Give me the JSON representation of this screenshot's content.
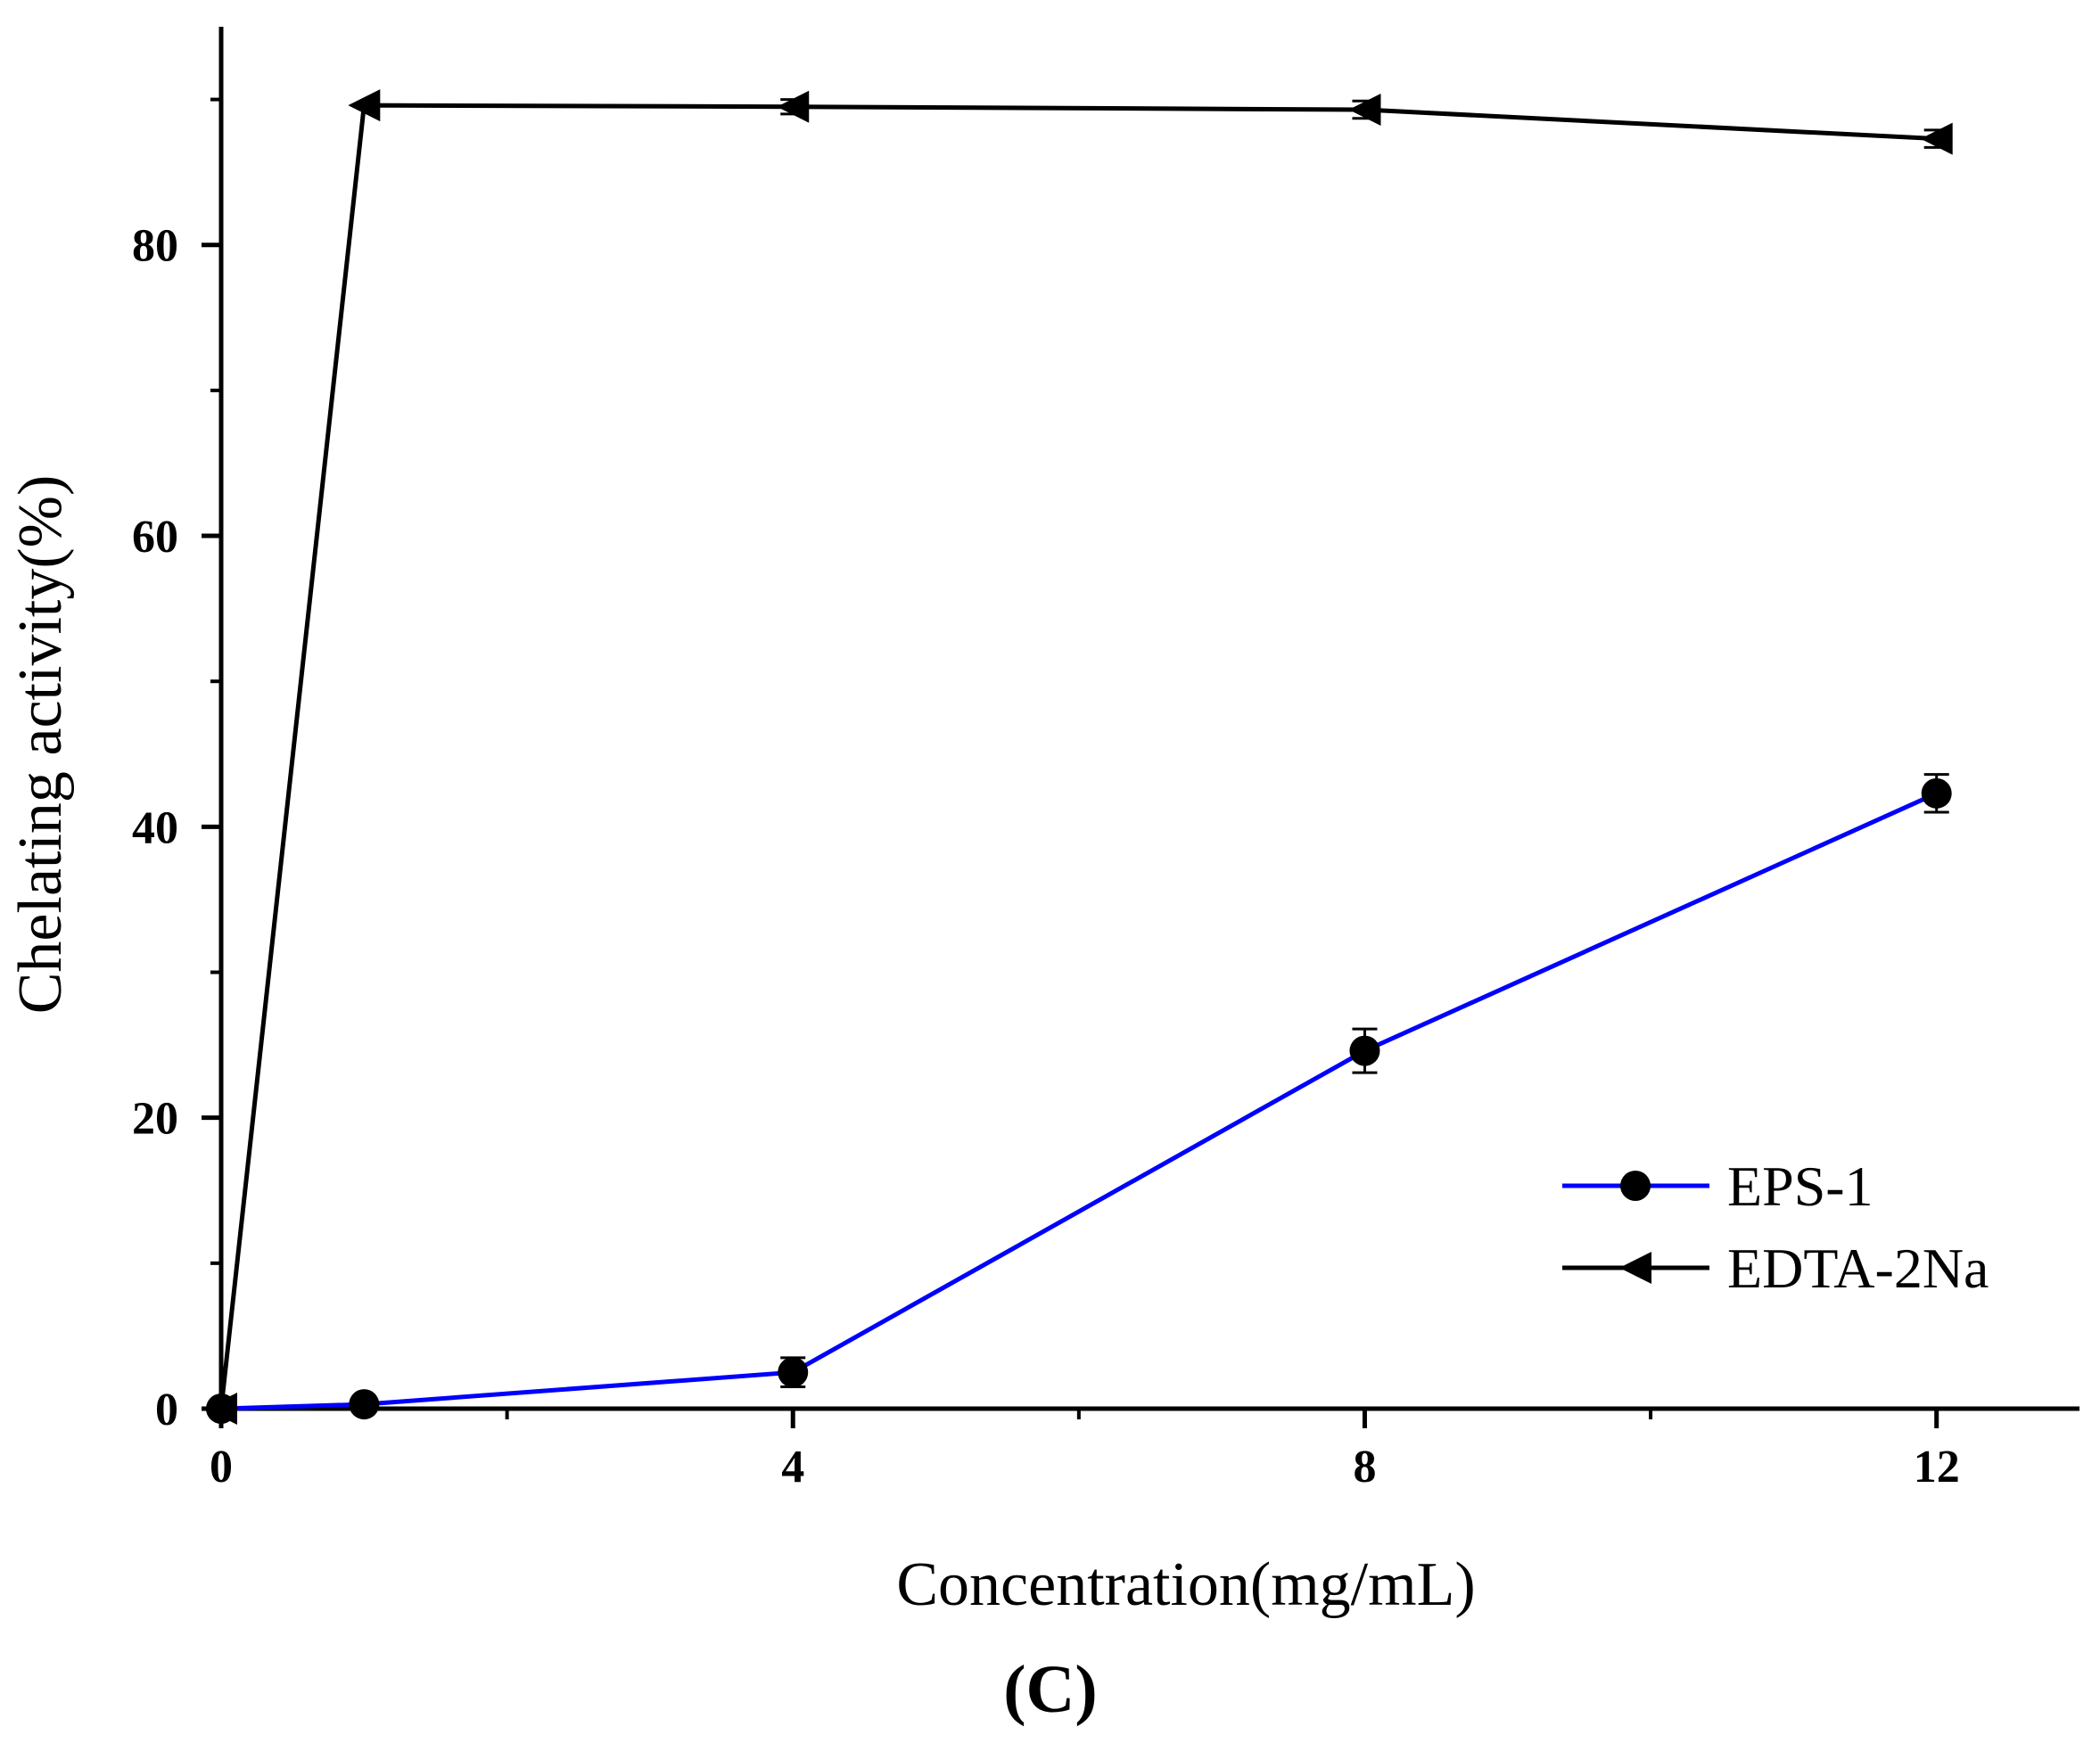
{
  "chart_data": {
    "type": "line",
    "title": "",
    "panel_label": "(C)",
    "xlabel": "Concentration(mg/mL)",
    "ylabel": "Chelating activity(%)",
    "xlim": [
      0,
      13
    ],
    "ylim": [
      0,
      95
    ],
    "x_ticks": [
      0,
      4,
      8,
      12
    ],
    "x_minor_ticks": [
      2,
      6,
      10
    ],
    "y_ticks": [
      0,
      20,
      40,
      60,
      80
    ],
    "y_minor_ticks": [
      10,
      30,
      50,
      70,
      90
    ],
    "grid": false,
    "legend_position": "bottom-right",
    "series": [
      {
        "name": "EPS-1",
        "color": "#0000ff",
        "marker": "circle",
        "x": [
          0,
          1,
          4,
          8,
          12
        ],
        "y": [
          0,
          0.3,
          2.5,
          24.6,
          42.3
        ],
        "error": [
          0,
          0,
          1.0,
          1.5,
          1.3
        ]
      },
      {
        "name": "EDTA-2Na",
        "color": "#000000",
        "marker": "triangle-left",
        "x": [
          0,
          1,
          4,
          8,
          12
        ],
        "y": [
          0,
          89.6,
          89.5,
          89.3,
          87.3
        ],
        "error": [
          0,
          0,
          0.5,
          0.6,
          0.6
        ]
      }
    ]
  }
}
